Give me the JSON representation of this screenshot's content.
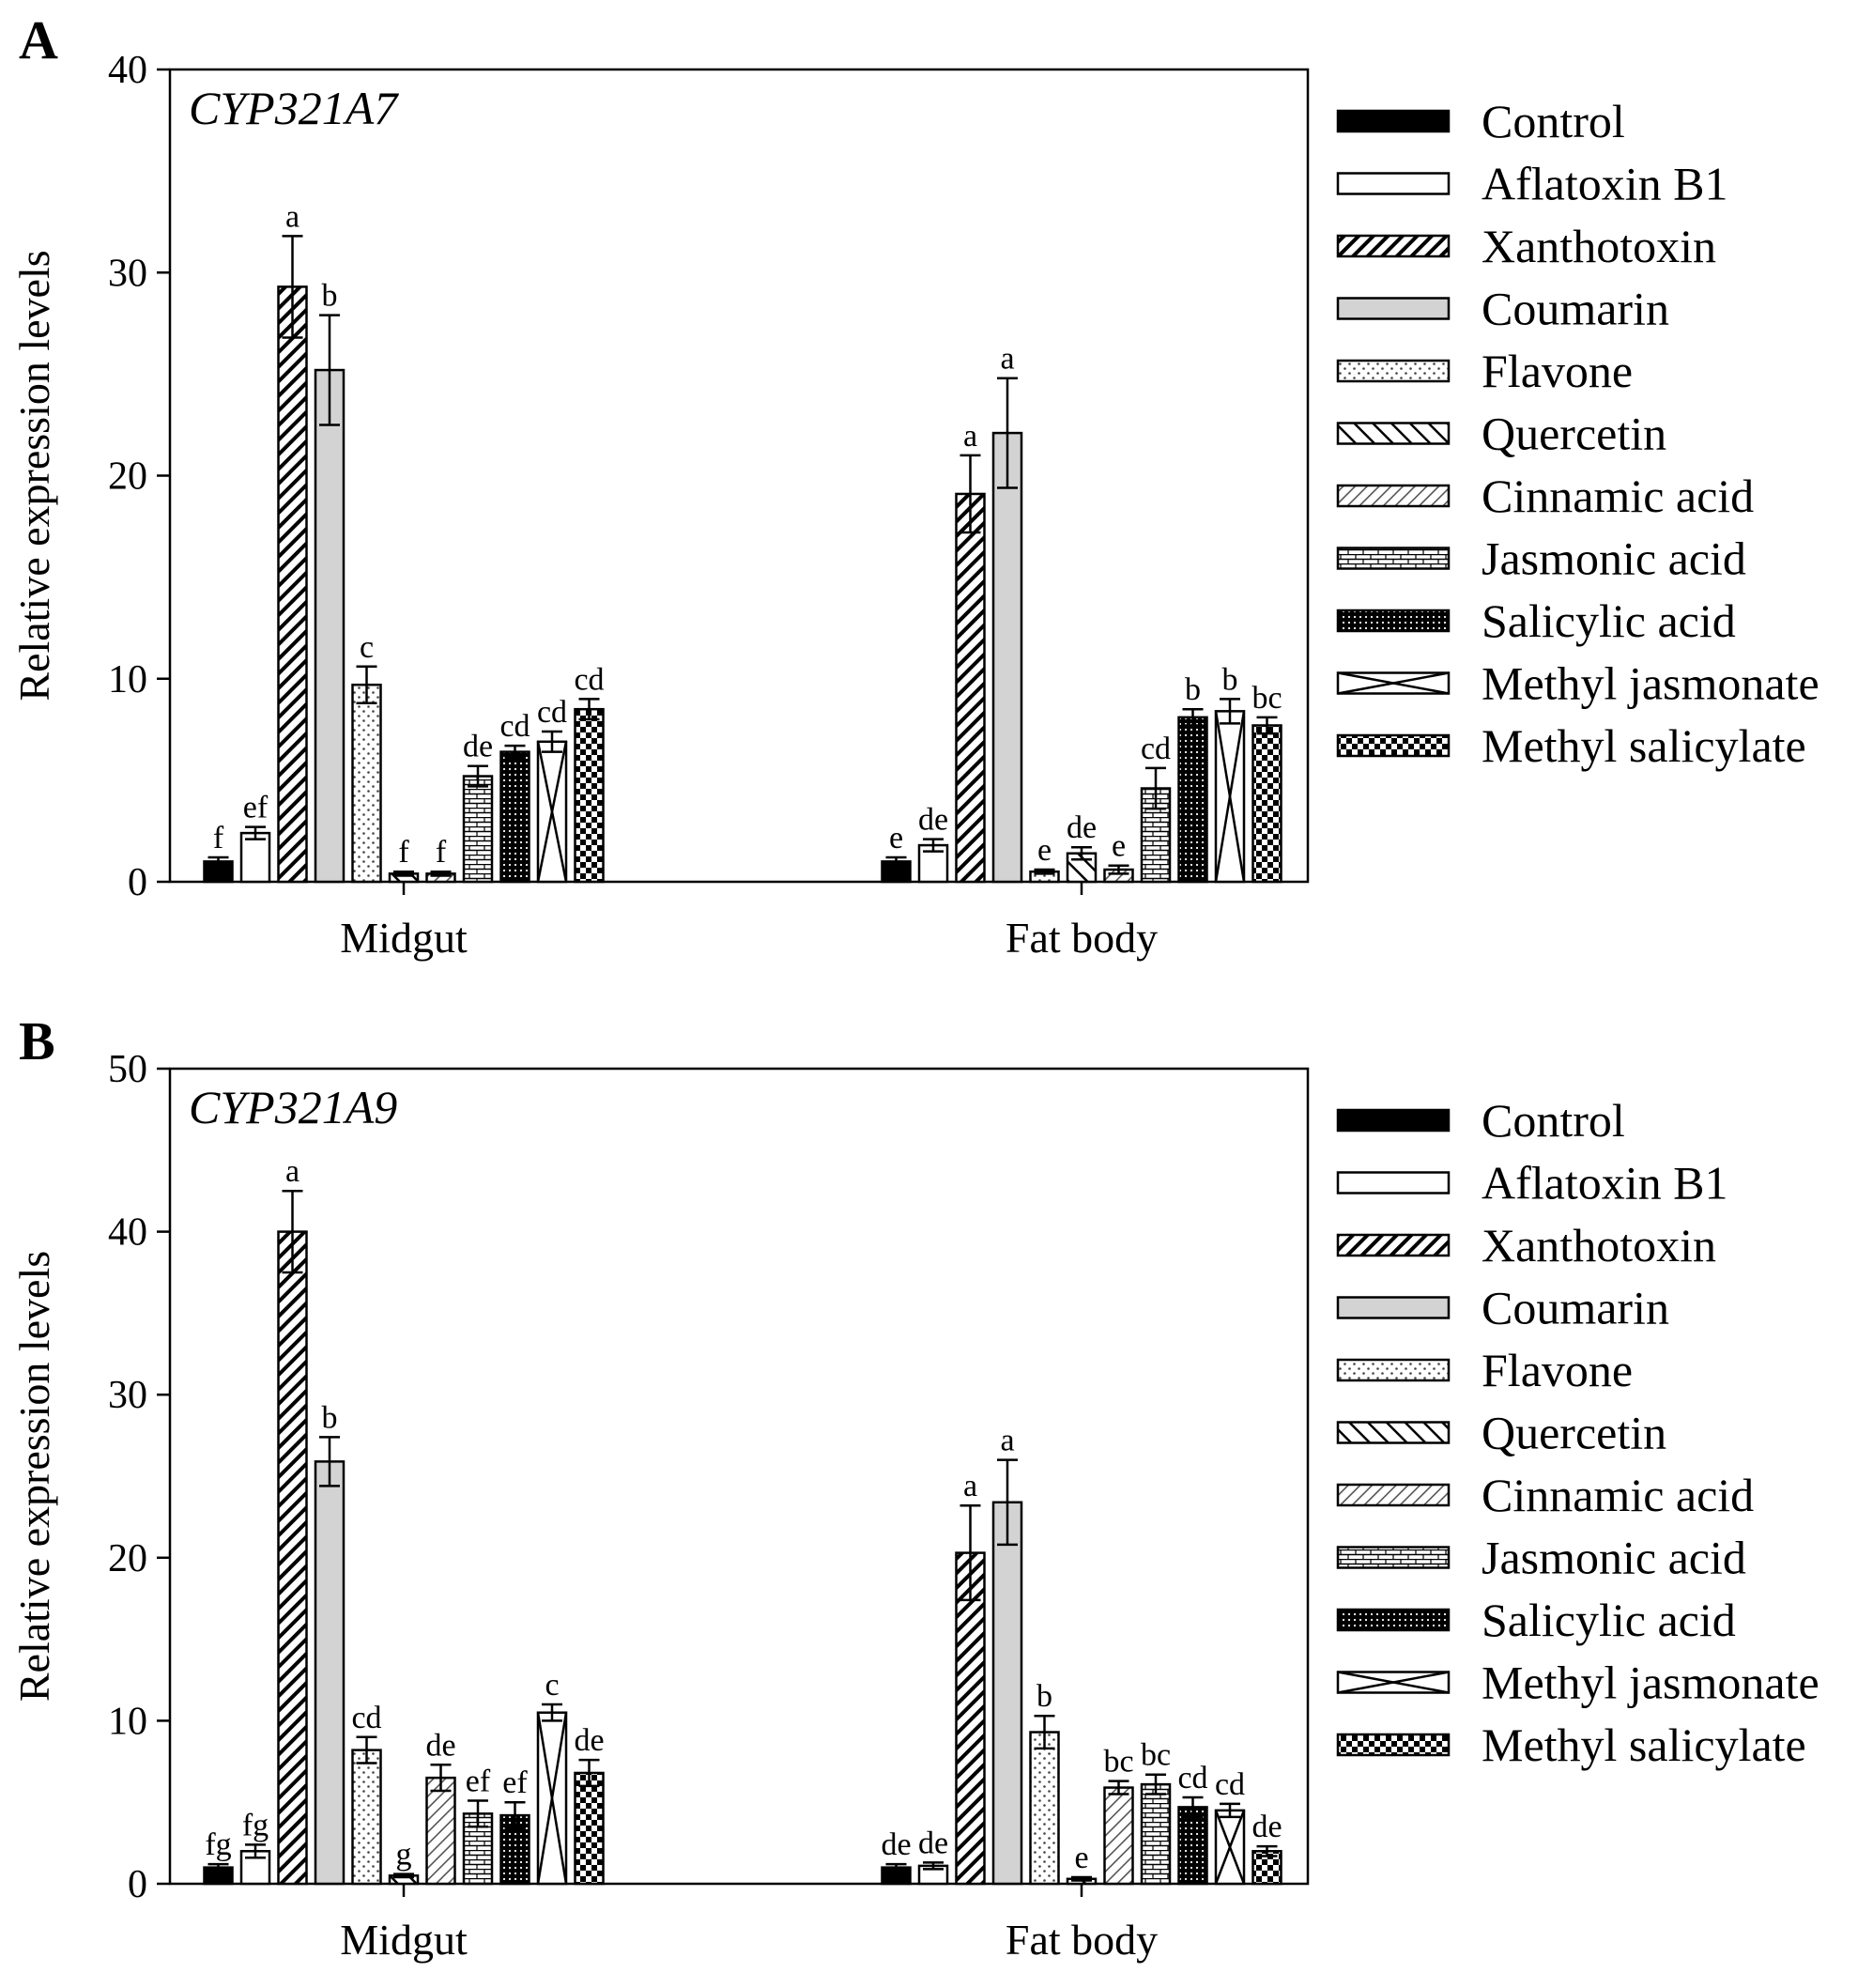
{
  "series_names": [
    "Control",
    "Aflatoxin B1",
    "Xanthotoxin",
    "Coumarin",
    "Flavone",
    "Quercetin",
    "Cinnamic acid",
    "Jasmonic acid",
    "Salicylic acid",
    "Methyl jasmonate",
    "Methyl salicylate"
  ],
  "chart_data": [
    {
      "type": "bar",
      "panel": "A",
      "title": "CYP321A7",
      "ylabel": "Relative expression levels",
      "xlabel": "",
      "ylim": [
        0,
        40
      ],
      "yticks": [
        0,
        10,
        20,
        30,
        40
      ],
      "categories": [
        "Midgut",
        "Fat body"
      ],
      "series": [
        {
          "name": "Control",
          "values": [
            1.0,
            1.0
          ],
          "errors": [
            0.2,
            0.2
          ]
        },
        {
          "name": "Aflatoxin B1",
          "values": [
            2.4,
            1.8
          ],
          "errors": [
            0.3,
            0.3
          ]
        },
        {
          "name": "Xanthotoxin",
          "values": [
            29.3,
            19.1
          ],
          "errors": [
            2.5,
            1.9
          ]
        },
        {
          "name": "Coumarin",
          "values": [
            25.2,
            22.1
          ],
          "errors": [
            2.7,
            2.7
          ]
        },
        {
          "name": "Flavone",
          "values": [
            9.7,
            0.5
          ],
          "errors": [
            0.9,
            0.1
          ]
        },
        {
          "name": "Quercetin",
          "values": [
            0.4,
            1.4
          ],
          "errors": [
            0.1,
            0.3
          ]
        },
        {
          "name": "Cinnamic acid",
          "values": [
            0.4,
            0.6
          ],
          "errors": [
            0.1,
            0.2
          ]
        },
        {
          "name": "Jasmonic acid",
          "values": [
            5.2,
            4.6
          ],
          "errors": [
            0.5,
            1.0
          ]
        },
        {
          "name": "Salicylic acid",
          "values": [
            6.4,
            8.1
          ],
          "errors": [
            0.3,
            0.4
          ]
        },
        {
          "name": "Methyl jasmonate",
          "values": [
            6.9,
            8.4
          ],
          "errors": [
            0.5,
            0.6
          ]
        },
        {
          "name": "Methyl salicylate",
          "values": [
            8.5,
            7.7
          ],
          "errors": [
            0.5,
            0.4
          ]
        }
      ],
      "significance": [
        [
          "f",
          "ef",
          "a",
          "b",
          "c",
          "f",
          "f",
          "de",
          "cd",
          "cd",
          "cd"
        ],
        [
          "e",
          "de",
          "a",
          "a",
          "e",
          "de",
          "e",
          "cd",
          "b",
          "b",
          "bc"
        ]
      ]
    },
    {
      "type": "bar",
      "panel": "B",
      "title": "CYP321A9",
      "ylabel": "Relative expression levels",
      "xlabel": "",
      "ylim": [
        0,
        50
      ],
      "yticks": [
        0,
        10,
        20,
        30,
        40,
        50
      ],
      "categories": [
        "Midgut",
        "Fat body"
      ],
      "series": [
        {
          "name": "Control",
          "values": [
            1.0,
            1.0
          ],
          "errors": [
            0.2,
            0.2
          ]
        },
        {
          "name": "Aflatoxin B1",
          "values": [
            2.0,
            1.1
          ],
          "errors": [
            0.4,
            0.2
          ]
        },
        {
          "name": "Xanthotoxin",
          "values": [
            40.0,
            20.3
          ],
          "errors": [
            2.5,
            2.9
          ]
        },
        {
          "name": "Coumarin",
          "values": [
            25.9,
            23.4
          ],
          "errors": [
            1.5,
            2.6
          ]
        },
        {
          "name": "Flavone",
          "values": [
            8.2,
            9.3
          ],
          "errors": [
            0.8,
            1.0
          ]
        },
        {
          "name": "Quercetin",
          "values": [
            0.5,
            0.3
          ],
          "errors": [
            0.1,
            0.1
          ]
        },
        {
          "name": "Cinnamic acid",
          "values": [
            6.5,
            5.9
          ],
          "errors": [
            0.8,
            0.4
          ]
        },
        {
          "name": "Jasmonic acid",
          "values": [
            4.3,
            6.1
          ],
          "errors": [
            0.8,
            0.6
          ]
        },
        {
          "name": "Salicylic acid",
          "values": [
            4.2,
            4.7
          ],
          "errors": [
            0.8,
            0.6
          ]
        },
        {
          "name": "Methyl jasmonate",
          "values": [
            10.5,
            4.5
          ],
          "errors": [
            0.5,
            0.4
          ]
        },
        {
          "name": "Methyl salicylate",
          "values": [
            6.8,
            2.0
          ],
          "errors": [
            0.8,
            0.3
          ]
        }
      ],
      "significance": [
        [
          "fg",
          "fg",
          "a",
          "b",
          "cd",
          "g",
          "de",
          "ef",
          "ef",
          "c",
          "de"
        ],
        [
          "de",
          "de",
          "a",
          "a",
          "b",
          "e",
          "bc",
          "bc",
          "cd",
          "cd",
          "de"
        ]
      ]
    }
  ]
}
